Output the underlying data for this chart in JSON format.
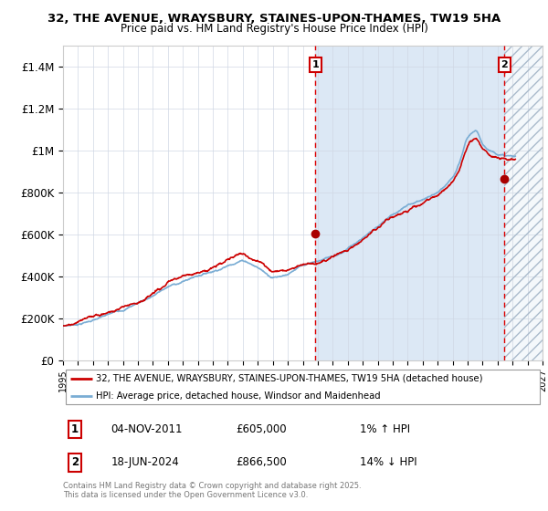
{
  "title_line1": "32, THE AVENUE, WRAYSBURY, STAINES-UPON-THAMES, TW19 5HA",
  "title_line2": "Price paid vs. HM Land Registry's House Price Index (HPI)",
  "ylim": [
    0,
    1500000
  ],
  "yticks": [
    0,
    200000,
    400000,
    600000,
    800000,
    1000000,
    1200000,
    1400000
  ],
  "ytick_labels": [
    "£0",
    "£200K",
    "£400K",
    "£600K",
    "£800K",
    "£1M",
    "£1.2M",
    "£1.4M"
  ],
  "sale1_date_num": 2011.84,
  "sale1_price": 605000,
  "sale2_date_num": 2024.46,
  "sale2_price": 866500,
  "legend_line1": "32, THE AVENUE, WRAYSBURY, STAINES-UPON-THAMES, TW19 5HA (detached house)",
  "legend_line2": "HPI: Average price, detached house, Windsor and Maidenhead",
  "annotation1_date": "04-NOV-2011",
  "annotation1_price": "£605,000",
  "annotation1_hpi": "1% ↑ HPI",
  "annotation2_date": "18-JUN-2024",
  "annotation2_price": "£866,500",
  "annotation2_hpi": "14% ↓ HPI",
  "footer": "Contains HM Land Registry data © Crown copyright and database right 2025.\nThis data is licensed under the Open Government Licence v3.0.",
  "price_color": "#cc0000",
  "hpi_line_color": "#7aadd4",
  "background_shade": "#dce8f5",
  "hatch_color": "#b8c8d8",
  "xmin": 1995,
  "xmax": 2027
}
